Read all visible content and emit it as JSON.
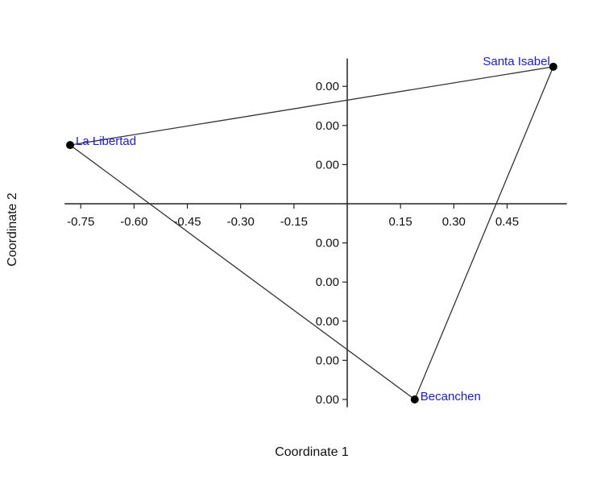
{
  "chart_data": {
    "type": "scatter",
    "xlabel": "Coordinate 1",
    "ylabel": "Coordinate 2",
    "x_ticks": [
      "-0.75",
      "-0.60",
      "-0.45",
      "-0.30",
      "-0.15",
      "0.15",
      "0.30",
      "0.45"
    ],
    "x_tick_values": [
      -0.75,
      -0.6,
      -0.45,
      -0.3,
      -0.15,
      0.15,
      0.3,
      0.45
    ],
    "y_ticks": [
      "0.00",
      "0.00",
      "0.00",
      "0.00",
      "0.00",
      "0.00",
      "0.00",
      "0.00"
    ],
    "y_tick_values": [
      0.003,
      0.002,
      0.001,
      -0.001,
      -0.002,
      -0.003,
      -0.004,
      -0.005
    ],
    "xlim": [
      -0.8,
      0.6
    ],
    "ylim": [
      -0.0053,
      0.004
    ],
    "points": [
      {
        "label": "Santa Isabel",
        "x": 0.58,
        "y": 0.0035
      },
      {
        "label": "La Libertad",
        "x": -0.78,
        "y": 0.0015
      },
      {
        "label": "Becanchen",
        "x": 0.19,
        "y": -0.005
      }
    ],
    "hull_order": [
      "Santa Isabel",
      "La Libertad",
      "Becanchen"
    ],
    "grid": false,
    "legend": "none",
    "colors": {
      "label": "#1a1adb",
      "point": "#000000",
      "line": "#333333",
      "axis": "#222222"
    }
  }
}
